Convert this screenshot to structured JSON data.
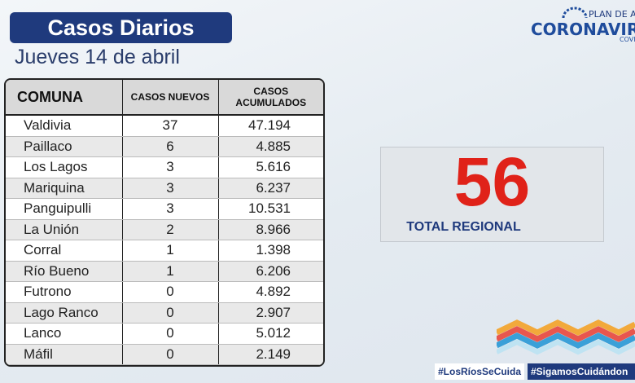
{
  "header": {
    "title": "Casos Diarios",
    "date": "Jueves 14 de abril"
  },
  "logo": {
    "plan": "PLAN DE ACC",
    "name": "CORONAVIRU",
    "sub": "COVI"
  },
  "table": {
    "columns": [
      "COMUNA",
      "CASOS NUEVOS",
      "CASOS ACUMULADOS"
    ],
    "rows": [
      [
        "Valdivia",
        "37",
        "47.194"
      ],
      [
        "Paillaco",
        "6",
        "4.885"
      ],
      [
        "Los Lagos",
        "3",
        "5.616"
      ],
      [
        "Mariquina",
        "3",
        "6.237"
      ],
      [
        "Panguipulli",
        "3",
        "10.531"
      ],
      [
        "La Unión",
        "2",
        "8.966"
      ],
      [
        "Corral",
        "1",
        "1.398"
      ],
      [
        "Río Bueno",
        "1",
        "6.206"
      ],
      [
        "Futrono",
        "0",
        "4.892"
      ],
      [
        "Lago Ranco",
        "0",
        "2.907"
      ],
      [
        "Lanco",
        "0",
        "5.012"
      ],
      [
        "Máfil",
        "0",
        "2.149"
      ]
    ]
  },
  "total": {
    "value": "56",
    "label": "TOTAL REGIONAL"
  },
  "hashtags": [
    "#LosRíosSeCuida",
    "#SigamosCuidándon"
  ]
}
